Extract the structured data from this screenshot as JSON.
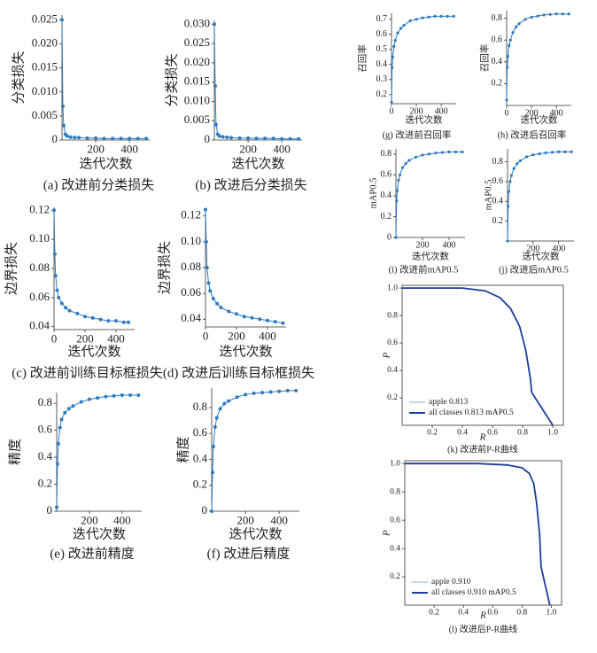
{
  "chart_data": [
    {
      "type": "line",
      "ylabel": "分类损失",
      "xlabel": "迭代次数",
      "caption": "(a) 改进前分类损失",
      "markers": true,
      "x": [
        0,
        5,
        10,
        20,
        30,
        50,
        75,
        100,
        150,
        200,
        250,
        300,
        350,
        400,
        450,
        500
      ],
      "series": [
        {
          "color": "#2e7bbf",
          "values": [
            0.025,
            0.007,
            0.003,
            0.0012,
            0.0008,
            0.0006,
            0.0005,
            0.0005,
            0.0004,
            0.0004,
            0.0003,
            0.0003,
            0.0003,
            0.0003,
            0.0003,
            0.0003
          ]
        }
      ],
      "xlim": [
        0,
        520
      ],
      "ylim": [
        0,
        0.026
      ],
      "xticks": [
        200,
        400
      ],
      "yticks": [
        0,
        0.005,
        {
          "value": 0.01,
          "label": "0.010"
        },
        0.015,
        {
          "value": 0.02,
          "label": "0.020"
        },
        0.025
      ]
    },
    {
      "type": "line",
      "ylabel": "分类损失",
      "xlabel": "迭代次数",
      "caption": "(b) 改进后分类损失",
      "markers": true,
      "x": [
        0,
        5,
        10,
        20,
        30,
        50,
        75,
        100,
        150,
        200,
        250,
        300,
        350,
        400,
        450,
        500
      ],
      "series": [
        {
          "color": "#2e7bbf",
          "values": [
            0.03,
            0.014,
            0.004,
            0.0015,
            0.001,
            0.0008,
            0.0007,
            0.0006,
            0.0005,
            0.0005,
            0.0004,
            0.0004,
            0.0004,
            0.0003,
            0.0003,
            0.0003
          ]
        }
      ],
      "xlim": [
        0,
        520
      ],
      "ylim": [
        0,
        0.031
      ],
      "xticks": [
        200,
        400
      ],
      "yticks": [
        0,
        0.005,
        {
          "value": 0.01,
          "label": "0.010"
        },
        0.015,
        {
          "value": 0.02,
          "label": "0.020"
        },
        0.025,
        {
          "value": 0.03,
          "label": "0.030"
        }
      ]
    },
    {
      "type": "line",
      "ylabel": "边界损失",
      "xlabel": "迭代次数",
      "caption": "(c) 改进前训练目标框损失",
      "markers": true,
      "x": [
        0,
        5,
        10,
        20,
        30,
        50,
        75,
        100,
        150,
        200,
        250,
        300,
        350,
        400,
        450,
        480
      ],
      "series": [
        {
          "color": "#2e7bbf",
          "values": [
            0.12,
            0.09,
            0.075,
            0.065,
            0.06,
            0.056,
            0.053,
            0.051,
            0.049,
            0.047,
            0.046,
            0.045,
            0.044,
            0.044,
            0.043,
            0.043
          ]
        }
      ],
      "xlim": [
        0,
        520
      ],
      "ylim": [
        0.038,
        0.122
      ],
      "xticks": [
        0,
        200,
        400
      ],
      "yticks": [
        0.04,
        0.06,
        0.08,
        {
          "value": 0.1,
          "label": "0.10"
        },
        0.12
      ]
    },
    {
      "type": "line",
      "ylabel": "边界损失",
      "xlabel": "迭代次数",
      "caption": "(d) 改进后训练目标框损失",
      "markers": true,
      "x": [
        0,
        5,
        10,
        20,
        30,
        50,
        75,
        100,
        150,
        200,
        250,
        300,
        350,
        400,
        450,
        500
      ],
      "series": [
        {
          "color": "#2e7bbf",
          "values": [
            0.125,
            0.1,
            0.08,
            0.068,
            0.062,
            0.056,
            0.052,
            0.049,
            0.046,
            0.044,
            0.042,
            0.041,
            0.04,
            0.039,
            0.038,
            0.037
          ]
        }
      ],
      "xlim": [
        0,
        520
      ],
      "ylim": [
        0.034,
        0.126
      ],
      "xticks": [
        0,
        200,
        400
      ],
      "yticks": [
        0.04,
        0.06,
        0.08,
        {
          "value": 0.1,
          "label": "0.10"
        },
        0.12
      ]
    },
    {
      "type": "line",
      "ylabel": "精度",
      "xlabel": "迭代次数",
      "caption": "(e) 改进前精度",
      "markers": true,
      "x": [
        0,
        5,
        10,
        20,
        30,
        50,
        75,
        100,
        150,
        200,
        250,
        300,
        350,
        400,
        450,
        500
      ],
      "series": [
        {
          "color": "#2e7bbf",
          "values": [
            0.03,
            0.35,
            0.5,
            0.62,
            0.68,
            0.73,
            0.76,
            0.78,
            0.81,
            0.83,
            0.84,
            0.85,
            0.855,
            0.86,
            0.86,
            0.86
          ]
        }
      ],
      "xlim": [
        0,
        520
      ],
      "ylim": [
        0,
        0.88
      ],
      "xticks": [
        200,
        400
      ],
      "yticks": [
        0,
        0.2,
        0.4,
        0.6,
        0.8
      ]
    },
    {
      "type": "line",
      "ylabel": "精度",
      "xlabel": "迭代次数",
      "caption": "(f) 改进后精度",
      "markers": true,
      "x": [
        0,
        5,
        10,
        20,
        30,
        50,
        75,
        100,
        150,
        200,
        250,
        300,
        350,
        400,
        450,
        500
      ],
      "series": [
        {
          "color": "#2e7bbf",
          "values": [
            0,
            0.3,
            0.5,
            0.65,
            0.72,
            0.79,
            0.83,
            0.85,
            0.88,
            0.9,
            0.91,
            0.915,
            0.92,
            0.925,
            0.93,
            0.93
          ]
        }
      ],
      "xlim": [
        0,
        520
      ],
      "ylim": [
        0,
        0.95
      ],
      "xticks": [
        200,
        400
      ],
      "yticks": [
        0,
        0.2,
        0.4,
        0.6,
        0.8
      ]
    },
    {
      "type": "line",
      "ylabel": "召回率",
      "xlabel": "迭代次数",
      "caption": "(g) 改进前召回率",
      "markers": true,
      "x": [
        0,
        5,
        10,
        20,
        30,
        50,
        75,
        100,
        150,
        200,
        250,
        300,
        350,
        400,
        450,
        500
      ],
      "series": [
        {
          "color": "#2e7bbf",
          "values": [
            0.15,
            0.38,
            0.45,
            0.52,
            0.56,
            0.61,
            0.64,
            0.66,
            0.69,
            0.7,
            0.71,
            0.715,
            0.72,
            0.72,
            0.72,
            0.72
          ]
        }
      ],
      "xlim": [
        0,
        520
      ],
      "ylim": [
        0.14,
        0.74
      ],
      "xticks": [
        0,
        200,
        400
      ],
      "yticks": [
        0.2,
        0.3,
        0.4,
        0.5,
        0.6,
        0.7
      ]
    },
    {
      "type": "line",
      "ylabel": "召回率",
      "xlabel": "迭代次数",
      "caption": "(h) 改进后召回率",
      "markers": true,
      "x": [
        0,
        5,
        10,
        20,
        30,
        50,
        75,
        100,
        150,
        200,
        250,
        300,
        350,
        400,
        450,
        500
      ],
      "series": [
        {
          "color": "#2e7bbf",
          "values": [
            0.05,
            0.35,
            0.45,
            0.55,
            0.6,
            0.67,
            0.72,
            0.75,
            0.79,
            0.81,
            0.82,
            0.83,
            0.835,
            0.84,
            0.84,
            0.84
          ]
        }
      ],
      "xlim": [
        0,
        520
      ],
      "ylim": [
        0,
        0.87
      ],
      "xticks": [
        0,
        200,
        400
      ],
      "yticks": [
        0.2,
        0.4,
        0.6,
        0.8
      ]
    },
    {
      "type": "line",
      "ylabel": "mAP0.5",
      "xlabel": "迭代次数",
      "caption": "(i) 改进前mAP0.5",
      "markers": true,
      "x": [
        0,
        5,
        10,
        20,
        30,
        50,
        75,
        100,
        150,
        200,
        250,
        300,
        350,
        400,
        450,
        500
      ],
      "series": [
        {
          "color": "#2e7bbf",
          "values": [
            0,
            0.35,
            0.45,
            0.55,
            0.6,
            0.67,
            0.71,
            0.74,
            0.77,
            0.79,
            0.8,
            0.81,
            0.815,
            0.82,
            0.82,
            0.82
          ]
        }
      ],
      "xlim": [
        0,
        520
      ],
      "ylim": [
        0,
        0.85
      ],
      "xticks": [
        200,
        400
      ],
      "yticks": [
        0,
        0.2,
        0.4,
        0.6,
        0.8
      ]
    },
    {
      "type": "line",
      "ylabel": "mAP0.5",
      "xlabel": "迭代次数",
      "caption": "(j) 改进后mAP0.5",
      "markers": true,
      "x": [
        0,
        5,
        10,
        20,
        30,
        50,
        75,
        100,
        150,
        200,
        250,
        300,
        350,
        400,
        450,
        500
      ],
      "series": [
        {
          "color": "#2e7bbf",
          "values": [
            0,
            0.35,
            0.5,
            0.6,
            0.66,
            0.73,
            0.78,
            0.81,
            0.85,
            0.87,
            0.88,
            0.89,
            0.895,
            0.9,
            0.9,
            0.9
          ]
        }
      ],
      "xlim": [
        0,
        520
      ],
      "ylim": [
        0,
        0.93
      ],
      "xticks": [
        200,
        400
      ],
      "yticks": [
        0.2,
        0.4,
        0.6,
        0.8
      ]
    },
    {
      "type": "line",
      "ylabel": "P",
      "xlabel": "R",
      "caption": "(k) 改进前P-R曲线",
      "markers": false,
      "legend": "lower left",
      "x": [
        0,
        0.4,
        0.55,
        0.65,
        0.72,
        0.78,
        0.82,
        0.85,
        0.86,
        1
      ],
      "series": [
        {
          "name": "apple 0.813",
          "color": "#7fb2e0",
          "values": [
            1,
            1,
            0.98,
            0.93,
            0.85,
            0.72,
            0.55,
            0.35,
            0.24,
            0
          ]
        },
        {
          "name": "all classes 0.813 mAP0.5",
          "color": "#1f3c9c",
          "values": [
            1,
            1,
            0.98,
            0.93,
            0.85,
            0.72,
            0.55,
            0.35,
            0.24,
            0
          ]
        }
      ],
      "xlim": [
        0,
        1.07
      ],
      "ylim": [
        0,
        1.02
      ],
      "xticks": [
        0.2,
        0.4,
        0.6,
        0.8,
        {
          "value": 1,
          "label": "1.0"
        }
      ],
      "yticks": [
        0.2,
        0.4,
        0.6,
        0.8,
        {
          "value": 1,
          "label": "1.0"
        }
      ]
    },
    {
      "type": "line",
      "ylabel": "P",
      "xlabel": "R",
      "caption": "(l) 改进后P-R曲线",
      "markers": false,
      "legend": "lower left",
      "x": [
        0,
        0.5,
        0.7,
        0.8,
        0.85,
        0.88,
        0.9,
        0.92,
        0.93,
        0.99
      ],
      "series": [
        {
          "name": "apple 0.910",
          "color": "#7fb2e0",
          "values": [
            1,
            1,
            0.99,
            0.97,
            0.93,
            0.86,
            0.72,
            0.5,
            0.27,
            0
          ]
        },
        {
          "name": "all classes 0.910 mAP0.5",
          "color": "#1f3c9c",
          "values": [
            1,
            1,
            0.99,
            0.97,
            0.93,
            0.86,
            0.72,
            0.5,
            0.27,
            0
          ]
        }
      ],
      "xlim": [
        0,
        1.07
      ],
      "ylim": [
        0,
        1.02
      ],
      "xticks": [
        0.2,
        0.4,
        0.6,
        0.8,
        {
          "value": 1,
          "label": "1.0"
        }
      ],
      "yticks": [
        0.2,
        0.4,
        0.6,
        0.8,
        {
          "value": 1,
          "label": "1.0"
        }
      ]
    }
  ]
}
